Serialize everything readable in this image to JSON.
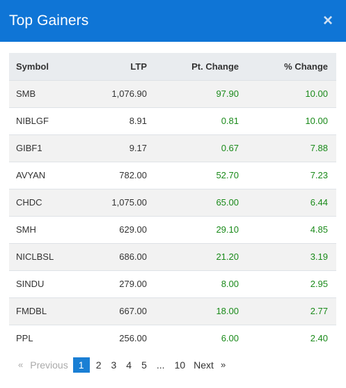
{
  "header": {
    "title": "Top Gainers",
    "close_glyph": "×"
  },
  "table": {
    "columns": [
      "Symbol",
      "LTP",
      "Pt. Change",
      "% Change"
    ],
    "rows": [
      {
        "symbol": "SMB",
        "ltp": "1,076.90",
        "pt_change": "97.90",
        "pct_change": "10.00"
      },
      {
        "symbol": "NIBLGF",
        "ltp": "8.91",
        "pt_change": "0.81",
        "pct_change": "10.00"
      },
      {
        "symbol": "GIBF1",
        "ltp": "9.17",
        "pt_change": "0.67",
        "pct_change": "7.88"
      },
      {
        "symbol": "AVYAN",
        "ltp": "782.00",
        "pt_change": "52.70",
        "pct_change": "7.23"
      },
      {
        "symbol": "CHDC",
        "ltp": "1,075.00",
        "pt_change": "65.00",
        "pct_change": "6.44"
      },
      {
        "symbol": "SMH",
        "ltp": "629.00",
        "pt_change": "29.10",
        "pct_change": "4.85"
      },
      {
        "symbol": "NICLBSL",
        "ltp": "686.00",
        "pt_change": "21.20",
        "pct_change": "3.19"
      },
      {
        "symbol": "SINDU",
        "ltp": "279.00",
        "pt_change": "8.00",
        "pct_change": "2.95"
      },
      {
        "symbol": "FMDBL",
        "ltp": "667.00",
        "pt_change": "18.00",
        "pct_change": "2.77"
      },
      {
        "symbol": "PPL",
        "ltp": "256.00",
        "pt_change": "6.00",
        "pct_change": "2.40"
      }
    ]
  },
  "pagination": {
    "prev_arrow": "«",
    "prev_label": "Previous",
    "pages": [
      "1",
      "2",
      "3",
      "4",
      "5",
      "...",
      "10"
    ],
    "active_page": "1",
    "next_label": "Next",
    "next_arrow": "»"
  },
  "colors": {
    "header_bg": "#0f75d6",
    "positive": "#1a8a1a",
    "active_page_bg": "#1a7fd4"
  }
}
